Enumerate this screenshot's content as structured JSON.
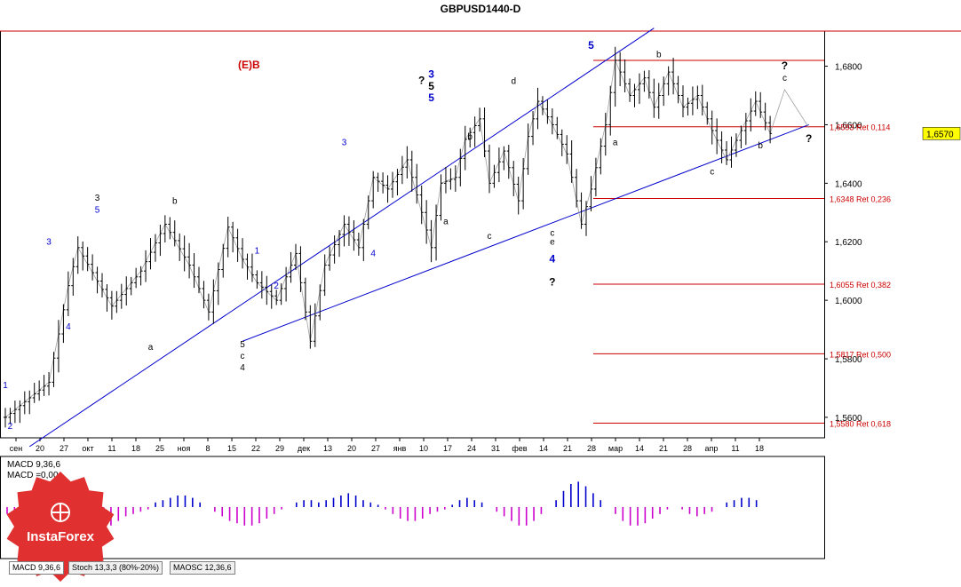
{
  "title": "GBPUSD1440-D",
  "header_label": "(E)B",
  "price_badge": "1,6570",
  "macd_label": "MACD 9,36,6",
  "macd_value": "MACD =0,00",
  "tabs": [
    "MACD 9,36,6",
    "Stoch 13,3,3 (80%-20%)",
    "MAOSC 12,36,6"
  ],
  "logo_text": "InstaForex",
  "colors": {
    "axis": "#000000",
    "channel": "#0000cc",
    "zigzag": "#a0a0a0",
    "fib": "#cc0000",
    "badge": "#ffff00",
    "macd_up": "#0000cc",
    "macd_down": "#cc00cc",
    "logo": "#e03030",
    "wave_blue": "#0000cc",
    "wave_black": "#000000",
    "wave_red": "#cc0000"
  },
  "chart_data": {
    "type": "candlestick",
    "y_axis_ticks": [
      "1,6800",
      "1,6600",
      "1,6400",
      "1,6200",
      "1,6000",
      "1,5800",
      "1,5600"
    ],
    "ylim": [
      1.553,
      1.692
    ],
    "x_axis_ticks": [
      "сен",
      "20",
      "27",
      "окт",
      "11",
      "18",
      "25",
      "ноя",
      "8",
      "15",
      "22",
      "29",
      "дек",
      "13",
      "20",
      "27",
      "янв",
      "10",
      "17",
      "24",
      "31",
      "фев",
      "14",
      "21",
      "28",
      "мар",
      "14",
      "21",
      "28",
      "апр",
      "11",
      "18"
    ],
    "price_path": [
      [
        0,
        1.56
      ],
      [
        9,
        1.572
      ],
      [
        13,
        1.605
      ],
      [
        15,
        1.618
      ],
      [
        22,
        1.598
      ],
      [
        28,
        1.61
      ],
      [
        33,
        1.626
      ],
      [
        38,
        1.612
      ],
      [
        42,
        1.596
      ],
      [
        46,
        1.625
      ],
      [
        49,
        1.614
      ],
      [
        52,
        1.606
      ],
      [
        56,
        1.6
      ],
      [
        60,
        1.616
      ],
      [
        63,
        1.586
      ],
      [
        66,
        1.612
      ],
      [
        70,
        1.626
      ],
      [
        73,
        1.618
      ],
      [
        76,
        1.642
      ],
      [
        79,
        1.638
      ],
      [
        83,
        1.648
      ],
      [
        86,
        1.63
      ],
      [
        88,
        1.618
      ],
      [
        90,
        1.64
      ],
      [
        93,
        1.642
      ],
      [
        95,
        1.655
      ],
      [
        98,
        1.662
      ],
      [
        100,
        1.64
      ],
      [
        103,
        1.651
      ],
      [
        106,
        1.634
      ],
      [
        108,
        1.656
      ],
      [
        110,
        1.668
      ],
      [
        113,
        1.66
      ],
      [
        116,
        1.65
      ],
      [
        119,
        1.626
      ],
      [
        121,
        1.638
      ],
      [
        124,
        1.66
      ],
      [
        126,
        1.682
      ],
      [
        129,
        1.67
      ],
      [
        132,
        1.676
      ],
      [
        134,
        1.666
      ],
      [
        137,
        1.678
      ],
      [
        140,
        1.666
      ],
      [
        143,
        1.67
      ],
      [
        146,
        1.658
      ],
      [
        149,
        1.648
      ],
      [
        152,
        1.658
      ],
      [
        155,
        1.668
      ],
      [
        158,
        1.657
      ]
    ],
    "wave_labels": [
      {
        "text": "1",
        "color": "blue",
        "i": 0,
        "price": 1.57
      },
      {
        "text": "2",
        "color": "blue",
        "i": 1,
        "price": 1.556
      },
      {
        "text": "3",
        "color": "blue",
        "i": 9,
        "price": 1.619
      },
      {
        "text": "4",
        "color": "blue",
        "i": 13,
        "price": 1.59
      },
      {
        "text": "3",
        "color": "black",
        "i": 19,
        "price": 1.634
      },
      {
        "text": "5",
        "color": "blue",
        "i": 19,
        "price": 1.63
      },
      {
        "text": "a",
        "color": "black",
        "i": 30,
        "price": 1.583
      },
      {
        "text": "b",
        "color": "black",
        "i": 35,
        "price": 1.633
      },
      {
        "text": "5",
        "color": "black",
        "i": 49,
        "price": 1.584
      },
      {
        "text": "c",
        "color": "black",
        "i": 49,
        "price": 1.58
      },
      {
        "text": "4",
        "color": "black",
        "i": 49,
        "price": 1.576
      },
      {
        "text": "1",
        "color": "blue",
        "i": 52,
        "price": 1.616
      },
      {
        "text": "2",
        "color": "blue",
        "i": 56,
        "price": 1.604
      },
      {
        "text": "3",
        "color": "blue",
        "i": 70,
        "price": 1.653
      },
      {
        "text": "4",
        "color": "blue",
        "i": 76,
        "price": 1.615
      },
      {
        "text": "?",
        "color": "black",
        "i": 86,
        "price": 1.674
      },
      {
        "text": "3",
        "color": "blue",
        "i": 88,
        "price": 1.676
      },
      {
        "text": "5",
        "color": "black",
        "i": 88,
        "price": 1.672
      },
      {
        "text": "5",
        "color": "blue",
        "i": 88,
        "price": 1.668
      },
      {
        "text": "a",
        "color": "black",
        "i": 91,
        "price": 1.626
      },
      {
        "text": "b",
        "color": "black",
        "i": 96,
        "price": 1.655
      },
      {
        "text": "c",
        "color": "black",
        "i": 100,
        "price": 1.621
      },
      {
        "text": "d",
        "color": "black",
        "i": 105,
        "price": 1.674
      },
      {
        "text": "c",
        "color": "black",
        "i": 113,
        "price": 1.622
      },
      {
        "text": "e",
        "color": "black",
        "i": 113,
        "price": 1.619
      },
      {
        "text": "4",
        "color": "blue",
        "i": 113,
        "price": 1.613
      },
      {
        "text": "?",
        "color": "black",
        "i": 113,
        "price": 1.605
      },
      {
        "text": "5",
        "color": "blue",
        "i": 121,
        "price": 1.686
      },
      {
        "text": "a",
        "color": "black",
        "i": 126,
        "price": 1.653
      },
      {
        "text": "b",
        "color": "black",
        "i": 135,
        "price": 1.683
      },
      {
        "text": "c",
        "color": "black",
        "i": 146,
        "price": 1.643
      },
      {
        "text": "b",
        "color": "black",
        "i": 156,
        "price": 1.652
      },
      {
        "text": "?",
        "color": "black",
        "i": 161,
        "price": 1.679
      },
      {
        "text": "c",
        "color": "black",
        "i": 161,
        "price": 1.675
      },
      {
        "text": "?",
        "color": "black",
        "i": 166,
        "price": 1.654
      }
    ],
    "fib_levels": [
      {
        "price": 1.682,
        "label": ""
      },
      {
        "price": 1.6593,
        "label": "1,6593 Ret 0,114"
      },
      {
        "price": 1.6348,
        "label": "1,6348 Ret 0,236"
      },
      {
        "price": 1.6055,
        "label": "1,6055 Ret 0,382"
      },
      {
        "price": 1.5817,
        "label": "1,5817 Ret 0,500"
      },
      {
        "price": 1.558,
        "label": "1,5580 Ret 0,618"
      }
    ],
    "channel_lines": [
      {
        "from": [
          5,
          1.55
        ],
        "to": [
          134,
          1.693
        ]
      },
      {
        "from": [
          49,
          1.586
        ],
        "to": [
          166,
          1.66
        ]
      }
    ],
    "current_price": 1.657,
    "macd": {
      "name": "MACD 9,36,6",
      "values": [
        -3,
        -2,
        -1,
        -2,
        -3,
        -5,
        -6,
        -8,
        -9,
        -10,
        -11,
        -12,
        -11,
        -10,
        -8,
        -6,
        -4,
        -3,
        -2,
        -1,
        2,
        3,
        4,
        5,
        5,
        4,
        2,
        0,
        -2,
        -4,
        -6,
        -7,
        -8,
        -8,
        -7,
        -5,
        -3,
        -1,
        0,
        2,
        3,
        3,
        2,
        3,
        4,
        5,
        6,
        5,
        3,
        2,
        1,
        -1,
        -3,
        -5,
        -6,
        -6,
        -5,
        -3,
        -2,
        -1,
        1,
        3,
        4,
        3,
        2,
        0,
        -2,
        -4,
        -6,
        -8,
        -8,
        -6,
        -3,
        0,
        3,
        7,
        10,
        11,
        9,
        6,
        3,
        0,
        -3,
        -6,
        -8,
        -8,
        -7,
        -5,
        -3,
        -1,
        0,
        -1,
        -3,
        -4,
        -3,
        -2,
        0,
        2,
        3,
        4,
        4,
        3
      ]
    }
  }
}
